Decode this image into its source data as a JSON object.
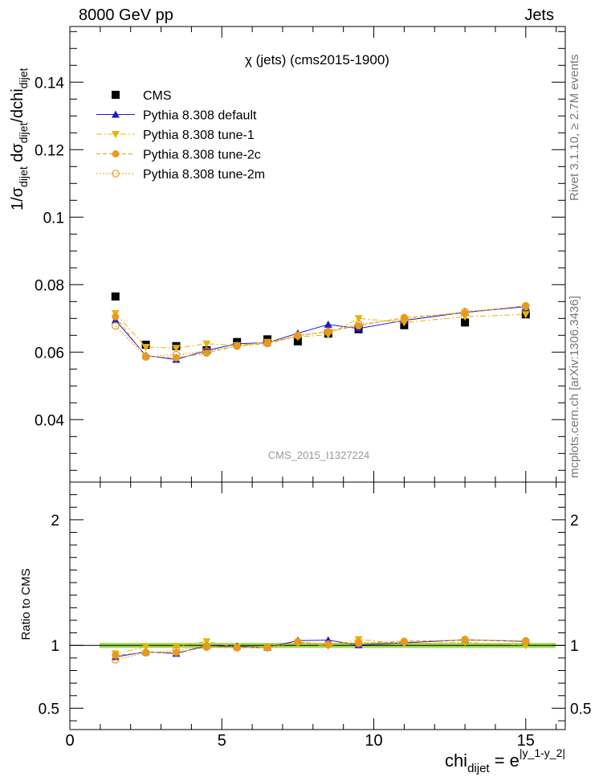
{
  "header": {
    "left": "8000 GeV pp",
    "right": "Jets"
  },
  "side": {
    "rivet": "Rivet 3.1.10, ≥ 2.7M events",
    "mcplots": "mcplots.cern.ch [arXiv:1306.3436]"
  },
  "chart_data": {
    "type": "line",
    "title": "χ (jets) (cms2015-1900)",
    "watermark": "CMS_2015_I1327224",
    "x": [
      1.5,
      2.5,
      3.5,
      4.5,
      5.5,
      6.5,
      7.5,
      8.5,
      9.5,
      11,
      13,
      15
    ],
    "xlim": [
      0,
      16.3
    ],
    "xticks": [
      0,
      5,
      10,
      15
    ],
    "xlabel": {
      "base": "chi",
      "sub": "dijet",
      "eq": " = e",
      "sup": "|y_1-y_2|"
    },
    "main": {
      "ylim": [
        0.0215,
        0.1565
      ],
      "yticks": [
        0.04,
        0.06,
        0.08,
        0.1,
        0.12,
        0.14
      ],
      "ytick_labels": [
        "0.04",
        "0.06",
        "0.08",
        "0.1",
        "0.12",
        "0.14"
      ],
      "ylabel": "1/σ_dijet dσ_dijet/dchi_dijet"
    },
    "ratio": {
      "ylim": [
        0.33,
        2.3
      ],
      "yticks": [
        0.5,
        1,
        2
      ],
      "ytick_labels": [
        "0.5",
        "1",
        "2"
      ],
      "ylabel": "Ratio to CMS",
      "band_color": "#9ee04a"
    },
    "series": [
      {
        "name": "CMS",
        "marker": "square",
        "color": "#000000",
        "line": "none",
        "values": [
          0.0765,
          0.0622,
          0.0618,
          0.0606,
          0.063,
          0.0638,
          0.0632,
          0.0655,
          0.0668,
          0.068,
          0.0688,
          0.0712
        ]
      },
      {
        "name": "Pythia 8.308 default",
        "marker": "triangle-up",
        "color": "#1b1bcc",
        "line": "solid",
        "values": [
          0.0695,
          0.059,
          0.0578,
          0.0605,
          0.0625,
          0.0628,
          0.0656,
          0.0682,
          0.067,
          0.0694,
          0.0718,
          0.0735
        ]
      },
      {
        "name": "Pythia 8.308 tune-1",
        "marker": "triangle-down",
        "color": "#e8b400",
        "line": "dashdot",
        "values": [
          0.0715,
          0.0615,
          0.0612,
          0.0625,
          0.062,
          0.063,
          0.0645,
          0.0652,
          0.07,
          0.0688,
          0.0705,
          0.0712
        ]
      },
      {
        "name": "Pythia 8.308 tune-2c",
        "marker": "circle",
        "color": "#e89a1a",
        "line": "dashed",
        "values": [
          0.0705,
          0.0588,
          0.0583,
          0.0597,
          0.0619,
          0.0625,
          0.0648,
          0.0662,
          0.0678,
          0.0703,
          0.0716,
          0.0738
        ]
      },
      {
        "name": "Pythia 8.308 tune-2m",
        "marker": "open-circle",
        "color": "#e89a1a",
        "line": "dotted",
        "values": [
          0.0678,
          0.0586,
          0.0593,
          0.0603,
          0.0618,
          0.0627,
          0.065,
          0.066,
          0.0683,
          0.0698,
          0.072,
          0.0737
        ]
      }
    ]
  }
}
